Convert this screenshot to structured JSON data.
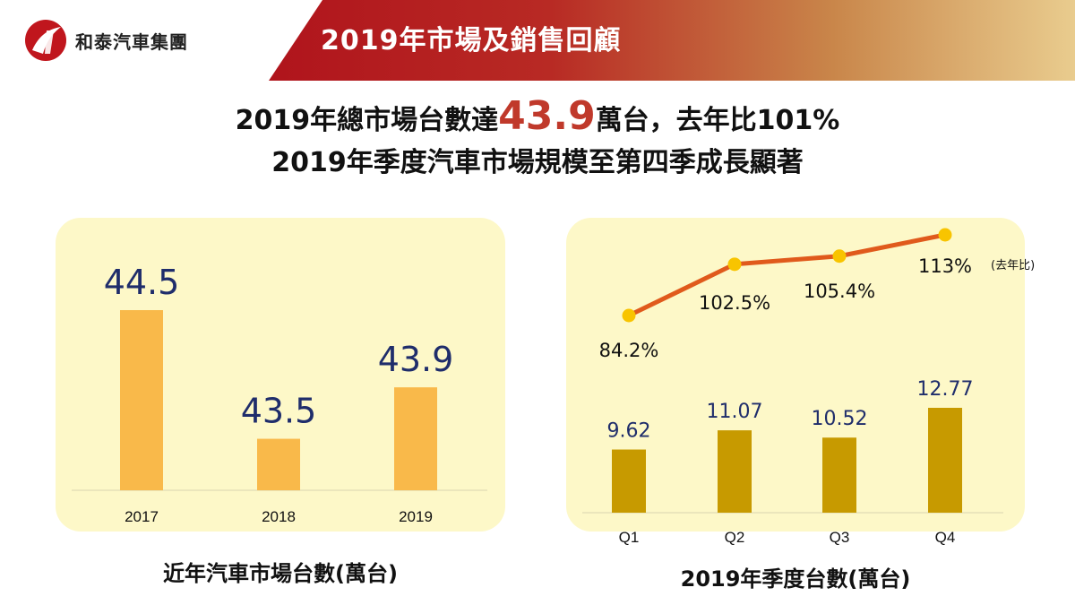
{
  "header": {
    "company": "和泰汽車集團",
    "title": "2019年市場及銷售回顧"
  },
  "headline": {
    "line1_prefix": "2019年總市場台數達",
    "line1_big": "43.9",
    "line1_suffix": "萬台，去年比101%",
    "line2": "2019年季度汽車市場規模至第四季成長顯著"
  },
  "colors": {
    "accent_red": "#b0141c",
    "bar_light": "#f9b94a",
    "bar_dark": "#c79a00",
    "line": "#e05a1c",
    "marker": "#f8c400",
    "panel_bg": "#fdf8c8",
    "value_label": "#1f2d6b"
  },
  "chart_data": [
    {
      "type": "bar",
      "categories": [
        "2017",
        "2018",
        "2019"
      ],
      "values": [
        44.5,
        43.5,
        43.9
      ],
      "value_labels": [
        "44.5",
        "43.5",
        "43.9"
      ],
      "caption": "近年汽車市場台數(萬台)",
      "grid": false
    },
    {
      "type": "bar",
      "categories": [
        "Q1",
        "Q2",
        "Q3",
        "Q4"
      ],
      "values": [
        9.62,
        11.07,
        10.52,
        12.77
      ],
      "value_labels": [
        "9.62",
        "11.07",
        "10.52",
        "12.77"
      ],
      "line_values": [
        84.2,
        102.5,
        105.4,
        113
      ],
      "line_labels": [
        "84.2%",
        "102.5%",
        "105.4%",
        "113%"
      ],
      "line_note": "(去年比)",
      "caption": "2019年季度台數(萬台)",
      "grid": false
    }
  ]
}
